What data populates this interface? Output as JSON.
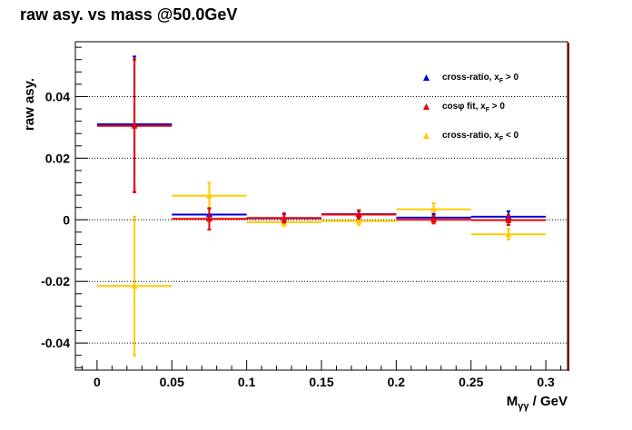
{
  "chart_data": {
    "type": "scatter",
    "title": "raw asy. vs mass @50.0GeV",
    "xlabel": {
      "main": "M",
      "sub": "γγ",
      "rest": " / GeV"
    },
    "ylabel": "raw asy.",
    "xlim": [
      -0.0145,
      0.3145
    ],
    "ylim": [
      -0.0488,
      0.0578
    ],
    "x_ticks": [
      {
        "value": 0,
        "label": "0"
      },
      {
        "value": 0.05,
        "label": "0.05"
      },
      {
        "value": 0.1,
        "label": "0.1"
      },
      {
        "value": 0.15,
        "label": "0.15"
      },
      {
        "value": 0.2,
        "label": "0.2"
      },
      {
        "value": 0.25,
        "label": "0.25"
      },
      {
        "value": 0.3,
        "label": "0.3"
      }
    ],
    "y_ticks": [
      {
        "value": 0.04,
        "label": "0.04"
      },
      {
        "value": 0.02,
        "label": "0.02"
      },
      {
        "value": 0,
        "label": "0"
      },
      {
        "value": -0.02,
        "label": "-0.02"
      },
      {
        "value": -0.04,
        "label": "-0.04"
      }
    ],
    "grid_y": true,
    "legend_position": "top-right",
    "series": [
      {
        "name_main": "cross-ratio, x",
        "name_sub": "F",
        "name_rest": " > 0",
        "color": "#0000dd",
        "points": [
          {
            "x": 0.025,
            "xerr": 0.025,
            "y": 0.031,
            "yerr": 0.022
          },
          {
            "x": 0.075,
            "xerr": 0.025,
            "y": 0.0017,
            "yerr": 0.002
          },
          {
            "x": 0.125,
            "xerr": 0.025,
            "y": 0.0005,
            "yerr": 0.0013
          },
          {
            "x": 0.175,
            "xerr": 0.025,
            "y": 0.0018,
            "yerr": 0.0011
          },
          {
            "x": 0.225,
            "xerr": 0.025,
            "y": 0.0007,
            "yerr": 0.0012
          },
          {
            "x": 0.275,
            "xerr": 0.025,
            "y": 0.001,
            "yerr": 0.0018
          }
        ]
      },
      {
        "name_main": "cosφ fit, x",
        "name_sub": "F",
        "name_rest": " > 0",
        "color": "#ee0000",
        "points": [
          {
            "x": 0.025,
            "xerr": 0.025,
            "y": 0.0305,
            "yerr": 0.0215
          },
          {
            "x": 0.075,
            "xerr": 0.025,
            "y": 0.0003,
            "yerr": 0.0035
          },
          {
            "x": 0.125,
            "xerr": 0.025,
            "y": 0.0006,
            "yerr": 0.0015
          },
          {
            "x": 0.175,
            "xerr": 0.025,
            "y": 0.0017,
            "yerr": 0.0014
          },
          {
            "x": 0.225,
            "xerr": 0.025,
            "y": 0.0,
            "yerr": 0.0012
          },
          {
            "x": 0.275,
            "xerr": 0.025,
            "y": -0.0001,
            "yerr": 0.0016
          }
        ]
      },
      {
        "name_main": "cross-ratio, x",
        "name_sub": "F",
        "name_rest": " < 0",
        "color": "#ffcc00",
        "points": [
          {
            "x": 0.025,
            "xerr": 0.025,
            "y": -0.0215,
            "yerr": 0.0225
          },
          {
            "x": 0.075,
            "xerr": 0.025,
            "y": 0.0078,
            "yerr": 0.0042
          },
          {
            "x": 0.125,
            "xerr": 0.025,
            "y": -0.0008,
            "yerr": 0.0012
          },
          {
            "x": 0.175,
            "xerr": 0.025,
            "y": -0.0004,
            "yerr": 0.0013
          },
          {
            "x": 0.225,
            "xerr": 0.025,
            "y": 0.0034,
            "yerr": 0.002
          },
          {
            "x": 0.275,
            "xerr": 0.025,
            "y": -0.0047,
            "yerr": 0.0017
          }
        ]
      }
    ]
  }
}
